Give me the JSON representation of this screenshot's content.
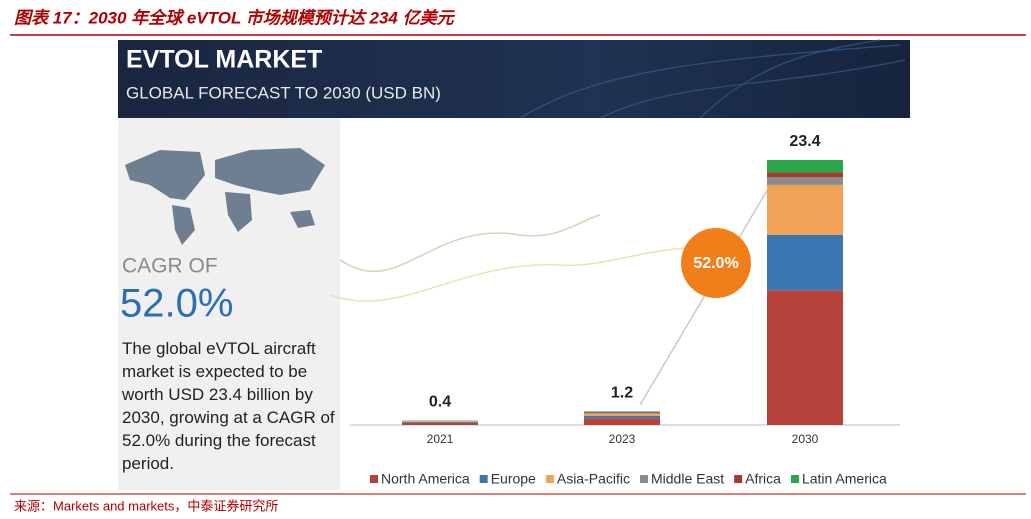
{
  "figure_title": "图表 17：2030 年全球 eVTOL 市场规模预计达 234 亿美元",
  "source": "来源：Markets and markets，中泰证券研究所",
  "banner": {
    "title": "EVTOL MARKET",
    "subtitle": "GLOBAL FORECAST TO 2030 (USD BN)"
  },
  "side_panel": {
    "cagr_label": "CAGR OF",
    "cagr_value": "52.0%",
    "description": "The global eVTOL aircraft market is expected to be worth USD 23.4 billion by 2030, growing at a CAGR of 52.0% during the forecast period."
  },
  "chart_data": {
    "type": "stacked_bar",
    "categories": [
      "2021",
      "2023",
      "2030"
    ],
    "series": [
      {
        "name": "North America",
        "color": "#b5423a",
        "values": [
          0.2,
          0.6,
          11.9
        ]
      },
      {
        "name": "Europe",
        "color": "#3b76b2",
        "values": [
          0.08,
          0.2,
          4.9
        ]
      },
      {
        "name": "Asia-Pacific",
        "color": "#f2a257",
        "values": [
          0.07,
          0.2,
          4.4
        ]
      },
      {
        "name": "Middle East",
        "color": "#8c8c8c",
        "values": [
          0.02,
          0.1,
          0.7
        ]
      },
      {
        "name": "Africa",
        "color": "#a63a31",
        "values": [
          0.01,
          0.05,
          0.4
        ]
      },
      {
        "name": "Latin America",
        "color": "#2ca64c",
        "values": [
          0.02,
          0.05,
          1.1
        ]
      }
    ],
    "totals": [
      0.4,
      1.2,
      23.4
    ],
    "growth_label": "52.0%"
  }
}
